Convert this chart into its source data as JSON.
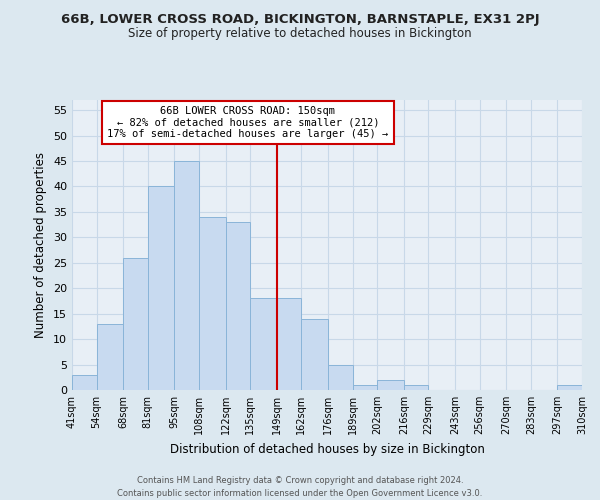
{
  "title": "66B, LOWER CROSS ROAD, BICKINGTON, BARNSTAPLE, EX31 2PJ",
  "subtitle": "Size of property relative to detached houses in Bickington",
  "xlabel": "Distribution of detached houses by size in Bickington",
  "ylabel": "Number of detached properties",
  "bin_labels": [
    "41sqm",
    "54sqm",
    "68sqm",
    "81sqm",
    "95sqm",
    "108sqm",
    "122sqm",
    "135sqm",
    "149sqm",
    "162sqm",
    "176sqm",
    "189sqm",
    "202sqm",
    "216sqm",
    "229sqm",
    "243sqm",
    "256sqm",
    "270sqm",
    "283sqm",
    "297sqm",
    "310sqm"
  ],
  "bin_edges": [
    41,
    54,
    68,
    81,
    95,
    108,
    122,
    135,
    149,
    162,
    176,
    189,
    202,
    216,
    229,
    243,
    256,
    270,
    283,
    297,
    310
  ],
  "bar_heights": [
    3,
    13,
    26,
    40,
    45,
    34,
    33,
    18,
    18,
    14,
    5,
    1,
    2,
    1,
    0,
    0,
    0,
    0,
    0,
    1
  ],
  "bar_color": "#c8daf0",
  "bar_edge_color": "#8ab4d8",
  "vline_x": 149,
  "vline_color": "#cc0000",
  "annotation_line1": "66B LOWER CROSS ROAD: 150sqm",
  "annotation_line2": "← 82% of detached houses are smaller (212)",
  "annotation_line3": "17% of semi-detached houses are larger (45) →",
  "annotation_box_color": "#ffffff",
  "annotation_box_edge_color": "#cc0000",
  "ylim": [
    0,
    57
  ],
  "yticks": [
    0,
    5,
    10,
    15,
    20,
    25,
    30,
    35,
    40,
    45,
    50,
    55
  ],
  "grid_color": "#c8d8e8",
  "footer1": "Contains HM Land Registry data © Crown copyright and database right 2024.",
  "footer2": "Contains public sector information licensed under the Open Government Licence v3.0.",
  "bg_color": "#dce8f0",
  "plot_bg_color": "#e8eff6"
}
